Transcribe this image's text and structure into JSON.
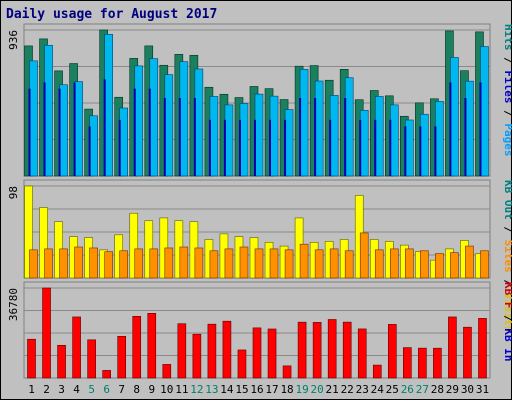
{
  "chart_data": {
    "type": "bar",
    "title": "Daily usage for August 2017",
    "days": [
      "1",
      "2",
      "3",
      "4",
      "5",
      "6",
      "7",
      "8",
      "9",
      "10",
      "11",
      "12",
      "13",
      "14",
      "15",
      "16",
      "17",
      "18",
      "19",
      "20",
      "21",
      "22",
      "23",
      "24",
      "25",
      "26",
      "27",
      "28",
      "29",
      "30",
      "31"
    ],
    "weekend_days": [
      "5",
      "6",
      "12",
      "13",
      "19",
      "20",
      "26",
      "27"
    ],
    "panels": [
      {
        "id": "hits",
        "ymax_label": "936",
        "ymax": 936,
        "legend": [
          {
            "text": "Pages",
            "color": "#00a0ff"
          },
          {
            "text": "Files",
            "color": "#0000cc"
          },
          {
            "text": "Hits",
            "color": "#008080"
          }
        ],
        "series": [
          {
            "name": "Hits",
            "color": "#1a8060",
            "values": [
              834,
              879,
              674,
              721,
              429,
              936,
              505,
              754,
              834,
              710,
              780,
              774,
              569,
              524,
              503,
              574,
              560,
              490,
              704,
              708,
              614,
              684,
              489,
              548,
              514,
              383,
              469,
              495,
              930,
              675,
              924
            ]
          },
          {
            "name": "Files",
            "color": "#00b8f0",
            "values": [
              738,
              838,
              585,
              605,
              386,
              908,
              436,
              706,
              752,
              650,
              733,
              686,
              510,
              456,
              465,
              525,
              512,
              426,
              684,
              609,
              517,
              630,
              421,
              510,
              456,
              359,
              396,
              478,
              760,
              608,
              830
            ]
          },
          {
            "name": "Pages",
            "color": "#0000b0",
            "values": [
              560,
              600,
              560,
              600,
              318,
              620,
              360,
              560,
              560,
              500,
              500,
              500,
              360,
              360,
              360,
              360,
              360,
              360,
              500,
              500,
              360,
              500,
              360,
              360,
              360,
              318,
              318,
              318,
              600,
              500,
              600
            ]
          }
        ]
      },
      {
        "id": "sites",
        "ymax_label": "98",
        "ymax": 98,
        "legend": [
          {
            "text": "Visits",
            "color": "#e0c000"
          },
          {
            "text": "Sites",
            "color": "#ff8c00"
          },
          {
            "text": "KB Out",
            "color": "#008080"
          }
        ],
        "series": [
          {
            "name": "Visits",
            "color": "#ffff00",
            "values": [
              98,
              75,
              60,
              44,
              43,
              30,
              46,
              69,
              61,
              64,
              61,
              60,
              41,
              47,
              44,
              43,
              38,
              34,
              64,
              38,
              39,
              41,
              88,
              41,
              39,
              35,
              28,
              19,
              31,
              40,
              26
            ]
          },
          {
            "name": "Sites",
            "color": "#ff9000",
            "values": [
              30,
              31,
              31,
              33,
              32,
              28,
              29,
              31,
              31,
              32,
              33,
              32,
              29,
              31,
              33,
              31,
              31,
              30,
              36,
              30,
              31,
              29,
              48,
              30,
              31,
              31,
              29,
              26,
              27,
              34,
              29
            ]
          }
        ]
      },
      {
        "id": "kbytes",
        "ymax_label": "36780",
        "ymax": 36780,
        "legend": [
          {
            "text": "KB In",
            "color": "#0000cc"
          },
          {
            "text": "KB F",
            "color": "#cc0000"
          }
        ],
        "series": [
          {
            "name": "KB F",
            "color": "#ff0000",
            "values": [
              15850,
              36780,
              13370,
              24950,
              15600,
              3100,
              17040,
              25210,
              26440,
              5560,
              22180,
              17900,
              22000,
              23220,
              11460,
              20480,
              20030,
              4950,
              22820,
              22730,
              23910,
              22840,
              20060,
              5280,
              21910,
              12430,
              12200,
              12180,
              24950,
              20760,
              24370
            ]
          }
        ]
      }
    ]
  }
}
